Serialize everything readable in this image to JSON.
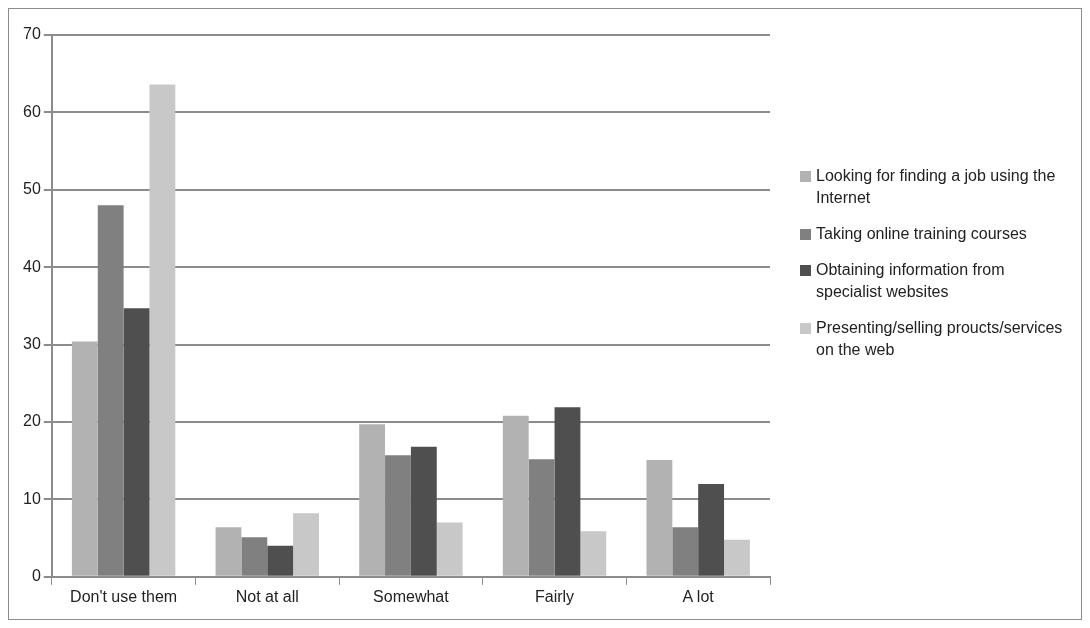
{
  "chart_data": {
    "type": "bar",
    "categories": [
      "Don't use them",
      "Not at all",
      "Somewhat",
      "Fairly",
      "A lot"
    ],
    "series": [
      {
        "name": "Looking for finding a job using the Internet",
        "color": "#b2b2b2",
        "values": [
          30.4,
          6.4,
          19.7,
          20.8,
          15.1
        ]
      },
      {
        "name": "Taking online training courses",
        "color": "#808080",
        "values": [
          48,
          5.1,
          15.7,
          15.2,
          6.4
        ]
      },
      {
        "name": "Obtaining information from specialist websites",
        "color": "#4f4f4f",
        "values": [
          34.7,
          4.0,
          16.8,
          21.9,
          12.0
        ]
      },
      {
        "name": "Presenting/selling proucts/services on the web",
        "color": "#c8c8c8",
        "values": [
          63.6,
          8.2,
          7.0,
          5.9,
          4.8
        ]
      }
    ],
    "ylim": [
      0,
      70
    ],
    "yticks": [
      0,
      10,
      20,
      30,
      40,
      50,
      60,
      70
    ],
    "grid": "y",
    "legend": "right"
  }
}
